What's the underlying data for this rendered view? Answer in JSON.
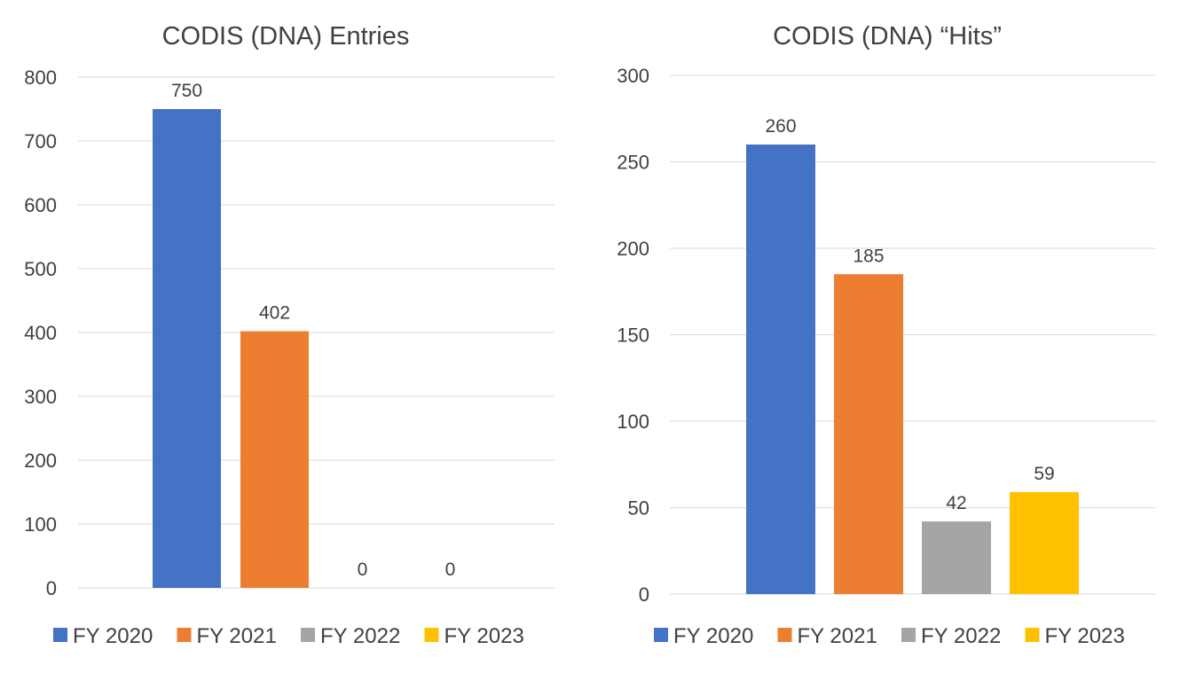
{
  "chart_data": [
    {
      "type": "bar",
      "title": "CODIS (DNA) Entries",
      "xlabel": "",
      "ylabel": "",
      "ylim": [
        0,
        800
      ],
      "yticks": [
        0,
        100,
        200,
        300,
        400,
        500,
        600,
        700,
        800
      ],
      "grid": true,
      "legend_position": "bottom",
      "series": [
        {
          "name": "FY 2020",
          "color": "#4472C4",
          "value": 750
        },
        {
          "name": "FY 2021",
          "color": "#ED7D31",
          "value": 402
        },
        {
          "name": "FY 2022",
          "color": "#A5A5A5",
          "value": 0
        },
        {
          "name": "FY 2023",
          "color": "#FFC000",
          "value": 0
        }
      ]
    },
    {
      "type": "bar",
      "title": "CODIS (DNA) “Hits”",
      "xlabel": "",
      "ylabel": "",
      "ylim": [
        0,
        300
      ],
      "yticks": [
        0,
        50,
        100,
        150,
        200,
        250,
        300
      ],
      "grid": true,
      "legend_position": "bottom",
      "series": [
        {
          "name": "FY 2020",
          "color": "#4472C4",
          "value": 260
        },
        {
          "name": "FY 2021",
          "color": "#ED7D31",
          "value": 185
        },
        {
          "name": "FY 2022",
          "color": "#A5A5A5",
          "value": 42
        },
        {
          "name": "FY 2023",
          "color": "#FFC000",
          "value": 59
        }
      ]
    }
  ]
}
